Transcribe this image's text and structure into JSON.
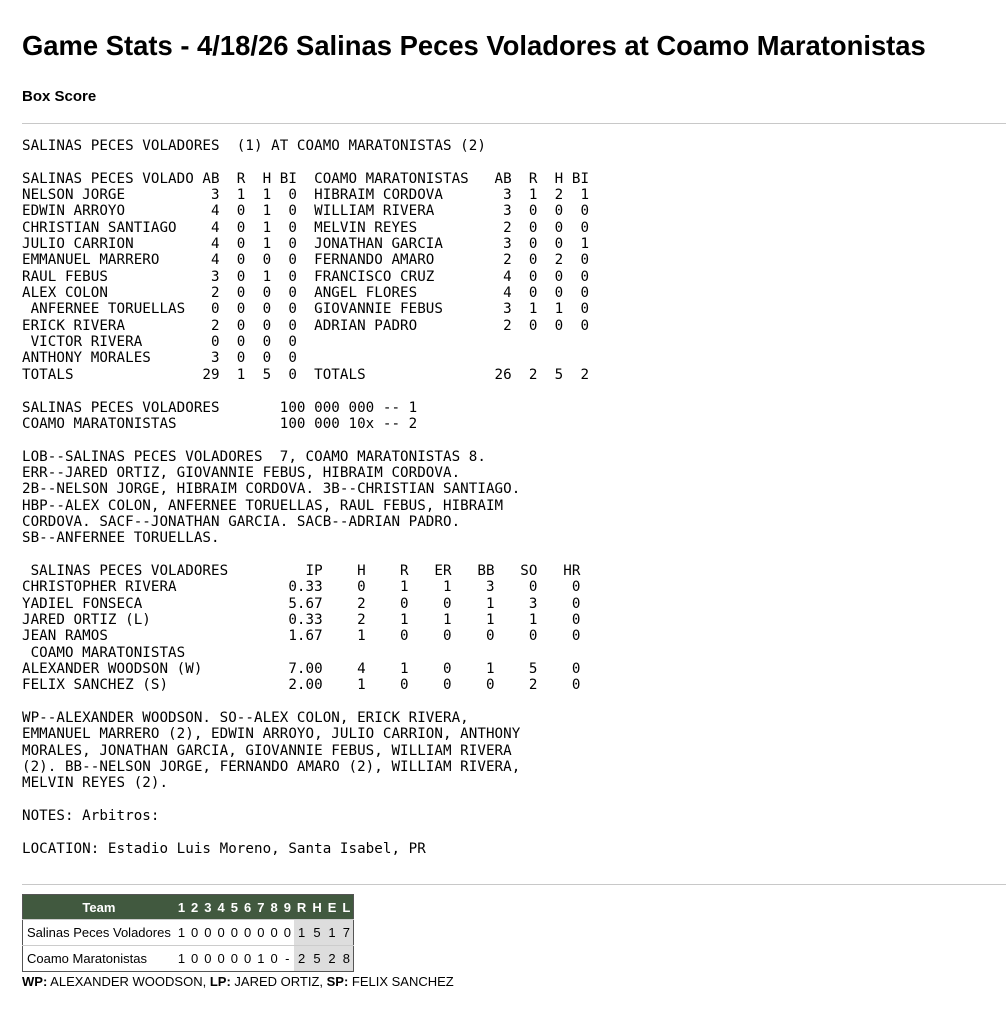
{
  "page": {
    "title": "Game Stats - 4/18/26 Salinas Peces Voladores at Coamo Maratonistas",
    "subtitle": "Box Score"
  },
  "box_score_lines": [
    "SALINAS PECES VOLADORES  (1) AT COAMO MARATONISTAS (2)",
    "",
    "SALINAS PECES VOLADO AB  R  H BI  COAMO MARATONISTAS   AB  R  H BI",
    "NELSON JORGE          3  1  1  0  HIBRAIM CORDOVA       3  1  2  1",
    "EDWIN ARROYO          4  0  1  0  WILLIAM RIVERA        3  0  0  0",
    "CHRISTIAN SANTIAGO    4  0  1  0  MELVIN REYES          2  0  0  0",
    "JULIO CARRION         4  0  1  0  JONATHAN GARCIA       3  0  0  1",
    "EMMANUEL MARRERO      4  0  0  0  FERNANDO AMARO        2  0  2  0",
    "RAUL FEBUS            3  0  1  0  FRANCISCO CRUZ        4  0  0  0",
    "ALEX COLON            2  0  0  0  ANGEL FLORES          4  0  0  0",
    " ANFERNEE TORUELLAS   0  0  0  0  GIOVANNIE FEBUS       3  1  1  0",
    "ERICK RIVERA          2  0  0  0  ADRIAN PADRO          2  0  0  0",
    " VICTOR RIVERA        0  0  0  0",
    "ANTHONY MORALES       3  0  0  0",
    "TOTALS               29  1  5  0  TOTALS               26  2  5  2",
    "",
    "SALINAS PECES VOLADORES       100 000 000 -- 1",
    "COAMO MARATONISTAS            100 000 10x -- 2",
    "",
    "LOB--SALINAS PECES VOLADORES  7, COAMO MARATONISTAS 8.",
    "ERR--JARED ORTIZ, GIOVANNIE FEBUS, HIBRAIM CORDOVA.",
    "2B--NELSON JORGE, HIBRAIM CORDOVA. 3B--CHRISTIAN SANTIAGO.",
    "HBP--ALEX COLON, ANFERNEE TORUELLAS, RAUL FEBUS, HIBRAIM",
    "CORDOVA. SACF--JONATHAN GARCIA. SACB--ADRIAN PADRO.",
    "SB--ANFERNEE TORUELLAS.",
    "",
    " SALINAS PECES VOLADORES         IP    H    R   ER   BB   SO   HR",
    "CHRISTOPHER RIVERA             0.33    0    1    1    3    0    0",
    "YADIEL FONSECA                 5.67    2    0    0    1    3    0",
    "JARED ORTIZ (L)                0.33    2    1    1    1    1    0",
    "JEAN RAMOS                     1.67    1    0    0    0    0    0",
    " COAMO MARATONISTAS",
    "ALEXANDER WOODSON (W)          7.00    4    1    0    1    5    0",
    "FELIX SANCHEZ (S)              2.00    1    0    0    0    2    0",
    "",
    "WP--ALEXANDER WOODSON. SO--ALEX COLON, ERICK RIVERA,",
    "EMMANUEL MARRERO (2), EDWIN ARROYO, JULIO CARRION, ANTHONY",
    "MORALES, JONATHAN GARCIA, GIOVANNIE FEBUS, WILLIAM RIVERA",
    "(2). BB--NELSON JORGE, FERNANDO AMARO (2), WILLIAM RIVERA,",
    "MELVIN REYES (2).",
    "",
    "NOTES: Arbitros:",
    "",
    "LOCATION: Estadio Luis Moreno, Santa Isabel, PR"
  ],
  "linescore": {
    "header_color": "#41593f",
    "headers": [
      "Team",
      "1",
      "2",
      "3",
      "4",
      "5",
      "6",
      "7",
      "8",
      "9",
      "R",
      "H",
      "E",
      "L"
    ],
    "rows": [
      [
        "Salinas Peces Voladores",
        "1",
        "0",
        "0",
        "0",
        "0",
        "0",
        "0",
        "0",
        "0",
        "1",
        "5",
        "1",
        "7"
      ],
      [
        "Coamo Maratonistas",
        "1",
        "0",
        "0",
        "0",
        "0",
        "0",
        "1",
        "0",
        "-",
        "2",
        "5",
        "2",
        "8"
      ]
    ]
  },
  "footer": {
    "wp_label": "WP:",
    "wp": " ALEXANDER WOODSON, ",
    "lp_label": "LP:",
    "lp": " JARED ORTIZ, ",
    "sp_label": "SP:",
    "sp": " FELIX SANCHEZ"
  }
}
